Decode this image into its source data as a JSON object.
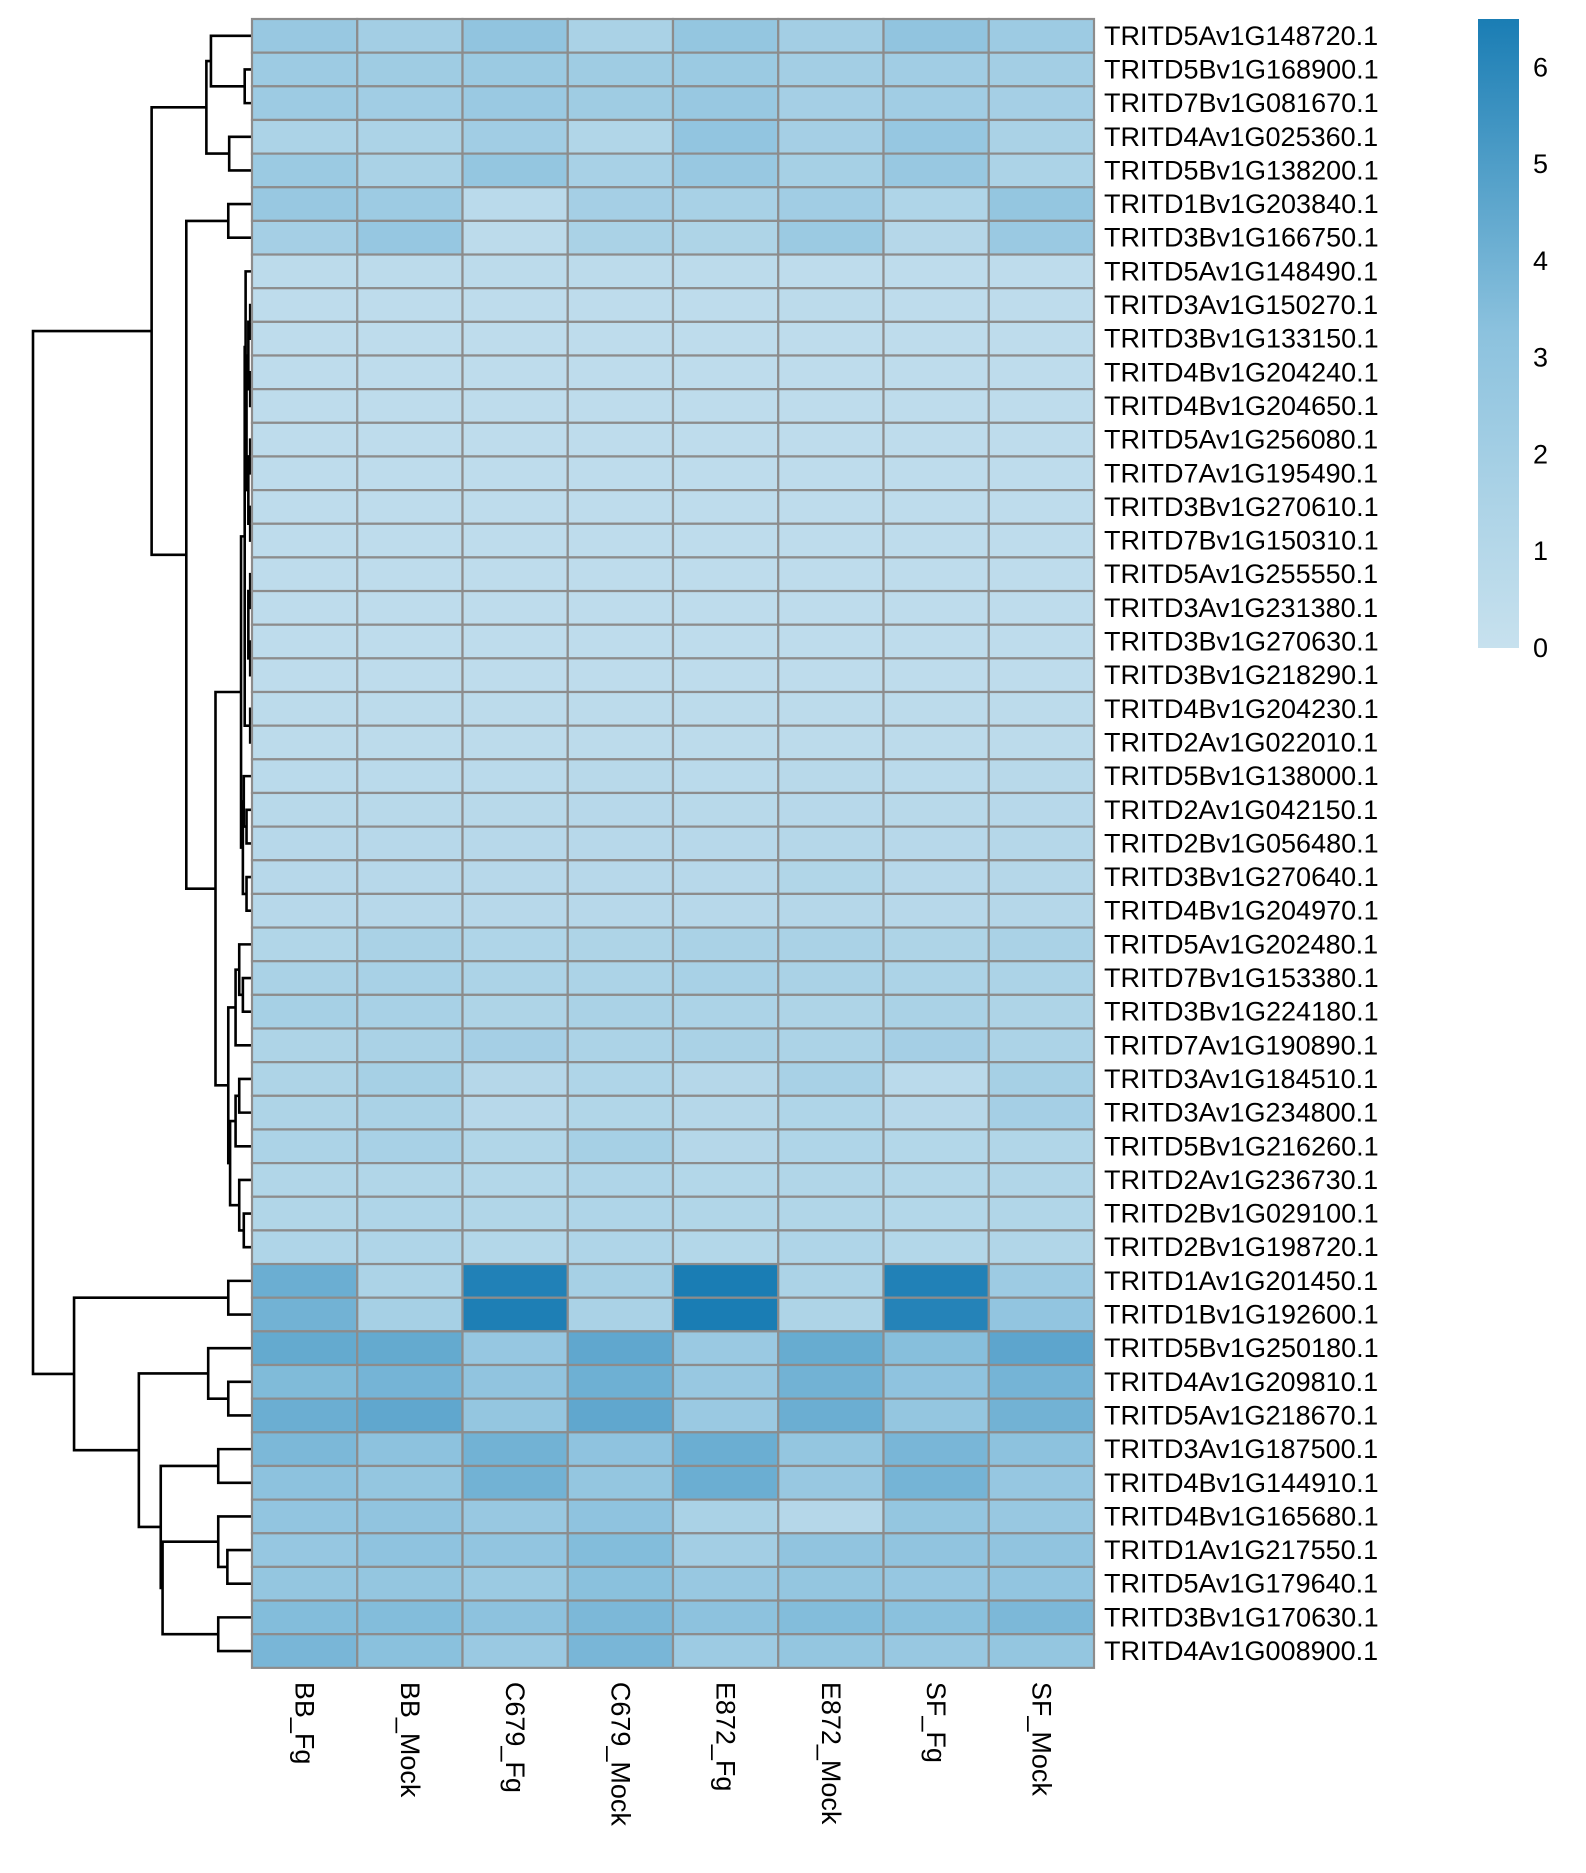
{
  "chart_data": {
    "type": "heatmap",
    "columns": [
      "BB_Fg",
      "BB_Mock",
      "C679_Fg",
      "C679_Mock",
      "E872_Fg",
      "E872_Mock",
      "SF_Fg",
      "SF_Mock"
    ],
    "rows": [
      "TRITD5Av1G148720.1",
      "TRITD5Bv1G168900.1",
      "TRITD7Bv1G081670.1",
      "TRITD4Av1G025360.1",
      "TRITD5Bv1G138200.1",
      "TRITD1Bv1G203840.1",
      "TRITD3Bv1G166750.1",
      "TRITD5Av1G148490.1",
      "TRITD3Av1G150270.1",
      "TRITD3Bv1G133150.1",
      "TRITD4Bv1G204240.1",
      "TRITD4Bv1G204650.1",
      "TRITD5Av1G256080.1",
      "TRITD7Av1G195490.1",
      "TRITD3Bv1G270610.1",
      "TRITD7Bv1G150310.1",
      "TRITD5Av1G255550.1",
      "TRITD3Av1G231380.1",
      "TRITD3Bv1G270630.1",
      "TRITD3Bv1G218290.1",
      "TRITD4Bv1G204230.1",
      "TRITD2Av1G022010.1",
      "TRITD5Bv1G138000.1",
      "TRITD2Av1G042150.1",
      "TRITD2Bv1G056480.1",
      "TRITD3Bv1G270640.1",
      "TRITD4Bv1G204970.1",
      "TRITD5Av1G202480.1",
      "TRITD7Bv1G153380.1",
      "TRITD3Bv1G224180.1",
      "TRITD7Av1G190890.1",
      "TRITD3Av1G184510.1",
      "TRITD3Av1G234800.1",
      "TRITD5Bv1G216260.1",
      "TRITD2Av1G236730.1",
      "TRITD2Bv1G029100.1",
      "TRITD2Bv1G198720.1",
      "TRITD1Av1G201450.1",
      "TRITD1Bv1G192600.1",
      "TRITD5Bv1G250180.1",
      "TRITD4Av1G209810.1",
      "TRITD5Av1G218670.1",
      "TRITD3Av1G187500.1",
      "TRITD4Bv1G144910.1",
      "TRITD4Bv1G165680.1",
      "TRITD1Av1G217550.1",
      "TRITD5Av1G179640.1",
      "TRITD3Bv1G170630.1",
      "TRITD4Av1G008900.1"
    ],
    "values": [
      [
        2.6,
        2.0,
        3.0,
        1.6,
        2.8,
        2.0,
        3.0,
        2.3
      ],
      [
        2.3,
        2.2,
        2.4,
        2.2,
        2.4,
        2.0,
        2.1,
        2.0
      ],
      [
        2.3,
        2.1,
        2.5,
        2.2,
        2.6,
        1.9,
        2.1,
        1.9
      ],
      [
        1.5,
        1.5,
        2.1,
        1.2,
        2.9,
        1.9,
        2.7,
        1.6
      ],
      [
        2.4,
        1.6,
        2.8,
        1.7,
        2.6,
        1.8,
        2.6,
        1.5
      ],
      [
        2.6,
        2.3,
        0.7,
        1.9,
        1.7,
        2.1,
        1.3,
        2.8
      ],
      [
        1.9,
        2.7,
        0.6,
        1.6,
        1.4,
        2.4,
        1.0,
        2.5
      ],
      [
        0.6,
        0.6,
        0.6,
        0.6,
        0.6,
        0.5,
        0.5,
        0.5
      ],
      [
        0.5,
        0.5,
        0.5,
        0.5,
        0.5,
        0.6,
        0.5,
        0.5
      ],
      [
        0.5,
        0.5,
        0.5,
        0.5,
        0.5,
        0.5,
        0.5,
        0.5
      ],
      [
        0.5,
        0.5,
        0.5,
        0.5,
        0.5,
        0.5,
        0.5,
        0.5
      ],
      [
        0.5,
        0.5,
        0.5,
        0.5,
        0.5,
        0.5,
        0.5,
        0.5
      ],
      [
        0.5,
        0.5,
        0.5,
        0.5,
        0.5,
        0.5,
        0.5,
        0.5
      ],
      [
        0.5,
        0.5,
        0.5,
        0.5,
        0.5,
        0.5,
        0.5,
        0.5
      ],
      [
        0.5,
        0.5,
        0.5,
        0.5,
        0.5,
        0.5,
        0.5,
        0.5
      ],
      [
        0.5,
        0.5,
        0.5,
        0.5,
        0.5,
        0.5,
        0.5,
        0.5
      ],
      [
        0.5,
        0.5,
        0.5,
        0.5,
        0.5,
        0.5,
        0.5,
        0.5
      ],
      [
        0.5,
        0.5,
        0.5,
        0.5,
        0.5,
        0.5,
        0.5,
        0.5
      ],
      [
        0.5,
        0.5,
        0.5,
        0.5,
        0.5,
        0.5,
        0.5,
        0.5
      ],
      [
        0.5,
        0.5,
        0.5,
        0.5,
        0.5,
        0.5,
        0.5,
        0.5
      ],
      [
        0.6,
        0.6,
        0.6,
        0.6,
        0.6,
        0.6,
        0.6,
        0.6
      ],
      [
        0.6,
        0.6,
        0.6,
        0.6,
        0.6,
        0.6,
        0.6,
        0.6
      ],
      [
        0.7,
        0.7,
        0.7,
        0.8,
        0.7,
        0.8,
        0.7,
        0.8
      ],
      [
        0.8,
        0.8,
        0.8,
        0.9,
        0.8,
        0.9,
        0.8,
        0.9
      ],
      [
        0.9,
        0.9,
        0.9,
        0.9,
        0.9,
        1.0,
        0.9,
        1.0
      ],
      [
        0.9,
        0.9,
        0.9,
        0.9,
        0.9,
        1.2,
        0.9,
        1.0
      ],
      [
        0.9,
        0.9,
        0.9,
        0.9,
        0.9,
        1.0,
        0.9,
        1.0
      ],
      [
        1.2,
        1.6,
        1.3,
        1.4,
        1.6,
        1.6,
        1.4,
        1.6
      ],
      [
        1.6,
        1.7,
        1.5,
        1.5,
        1.7,
        1.6,
        1.5,
        1.5
      ],
      [
        1.8,
        1.7,
        1.4,
        1.6,
        1.5,
        1.4,
        1.6,
        1.4
      ],
      [
        1.4,
        1.6,
        1.9,
        1.5,
        1.6,
        1.5,
        1.9,
        1.5
      ],
      [
        1.4,
        1.8,
        1.0,
        1.3,
        1.0,
        1.7,
        0.7,
        1.8
      ],
      [
        1.4,
        1.6,
        0.9,
        1.2,
        1.0,
        1.3,
        0.9,
        1.9
      ],
      [
        1.5,
        1.7,
        1.2,
        1.8,
        1.0,
        1.3,
        1.1,
        1.2
      ],
      [
        1.2,
        1.2,
        1.1,
        1.3,
        1.1,
        1.2,
        1.1,
        1.2
      ],
      [
        1.2,
        1.3,
        1.2,
        1.3,
        1.2,
        1.2,
        1.1,
        1.2
      ],
      [
        1.3,
        1.3,
        1.1,
        1.3,
        1.1,
        1.3,
        1.1,
        1.2
      ],
      [
        4.2,
        1.5,
        6.3,
        1.8,
        6.5,
        1.5,
        6.3,
        2.3
      ],
      [
        4.0,
        1.8,
        6.4,
        1.6,
        6.5,
        1.4,
        6.2,
        2.9
      ],
      [
        4.4,
        4.4,
        2.7,
        4.5,
        2.5,
        4.3,
        3.4,
        4.6
      ],
      [
        3.6,
        3.9,
        3.0,
        4.1,
        2.6,
        4.0,
        3.1,
        3.9
      ],
      [
        4.2,
        4.5,
        2.8,
        4.5,
        2.5,
        4.2,
        2.8,
        4.0
      ],
      [
        3.7,
        3.2,
        4.0,
        3.1,
        4.2,
        2.8,
        3.8,
        3.2
      ],
      [
        3.2,
        2.8,
        4.0,
        2.8,
        4.2,
        2.6,
        3.9,
        2.7
      ],
      [
        2.9,
        3.0,
        2.6,
        3.1,
        1.6,
        1.0,
        2.8,
        2.6
      ],
      [
        2.7,
        3.1,
        2.9,
        3.5,
        2.0,
        3.0,
        3.0,
        3.0
      ],
      [
        2.8,
        2.8,
        2.4,
        3.3,
        2.6,
        2.8,
        2.7,
        2.9
      ],
      [
        3.5,
        3.5,
        3.2,
        3.7,
        3.2,
        3.5,
        3.3,
        3.7
      ],
      [
        3.8,
        3.3,
        2.5,
        3.8,
        2.3,
        2.8,
        2.6,
        2.8
      ]
    ],
    "value_range": [
      0,
      6.5
    ],
    "color_low": "#c7e1ee",
    "color_mid": "#8cc2de",
    "color_high": "#1a7db4",
    "cell_border_color": "#8c8c8c",
    "legend": {
      "position": "right",
      "ticks": [
        0,
        1,
        2,
        3,
        4,
        5,
        6
      ]
    },
    "row_dendrogram": {
      "merges": [
        [
          -2,
          -3,
          0.08
        ],
        [
          -9,
          -10,
          0.02
        ],
        [
          -11,
          -12,
          0.02
        ],
        [
          -13,
          -14,
          0.02
        ],
        [
          -15,
          -16,
          0.02
        ],
        [
          -17,
          -18,
          0.02
        ],
        [
          -19,
          -20,
          0.02
        ],
        [
          -21,
          -22,
          0.02
        ],
        [
          2,
          3,
          0.04
        ],
        [
          4,
          5,
          0.04
        ],
        [
          6,
          7,
          0.04
        ],
        [
          9,
          10,
          0.06
        ],
        [
          -24,
          -25,
          0.06
        ],
        [
          -26,
          -27,
          0.06
        ],
        [
          -8,
          12,
          0.07
        ],
        [
          8,
          15,
          0.08
        ],
        [
          -23,
          13,
          0.09
        ],
        [
          14,
          17,
          0.1
        ],
        [
          16,
          18,
          0.12
        ],
        [
          -4,
          -5,
          0.25
        ],
        [
          -29,
          -30,
          0.1
        ],
        [
          -28,
          21,
          0.14
        ],
        [
          -31,
          22,
          0.18
        ],
        [
          -32,
          -33,
          0.14
        ],
        [
          -34,
          24,
          0.18
        ],
        [
          -36,
          -37,
          0.09
        ],
        [
          -35,
          26,
          0.14
        ],
        [
          25,
          27,
          0.24
        ],
        [
          23,
          28,
          0.26
        ],
        [
          19,
          29,
          0.4
        ],
        [
          -6,
          -7,
          0.26
        ],
        [
          30,
          31,
          0.72
        ],
        [
          -1,
          1,
          0.45
        ],
        [
          33,
          20,
          0.5
        ],
        [
          34,
          32,
          1.1
        ],
        [
          -38,
          -39,
          0.26
        ],
        [
          -41,
          -42,
          0.26
        ],
        [
          -40,
          37,
          0.48
        ],
        [
          -43,
          -44,
          0.37
        ],
        [
          -46,
          -47,
          0.27
        ],
        [
          -45,
          40,
          0.37
        ],
        [
          -48,
          -49,
          0.37
        ],
        [
          41,
          42,
          0.98
        ],
        [
          39,
          43,
          1.0
        ],
        [
          38,
          44,
          1.24
        ],
        [
          36,
          45,
          1.95
        ],
        [
          35,
          46,
          2.4
        ]
      ],
      "max_height": 2.4
    }
  }
}
